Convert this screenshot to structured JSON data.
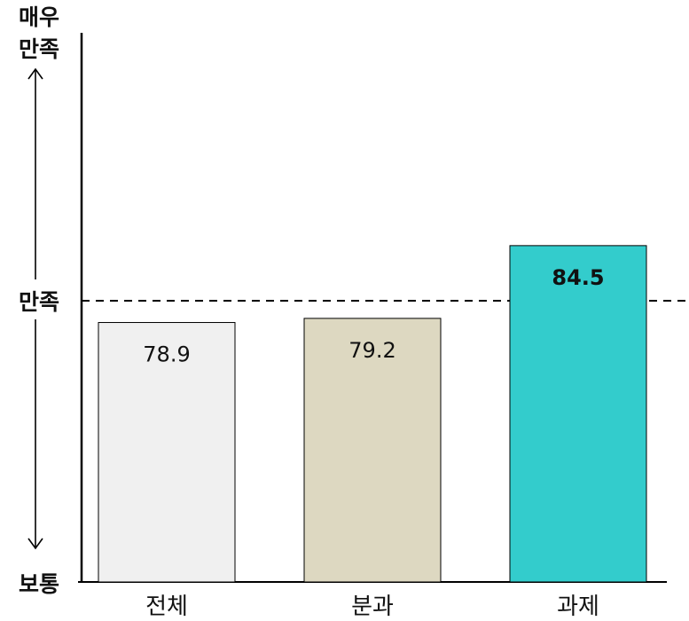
{
  "chart_data": {
    "type": "bar",
    "categories": [
      "전체",
      "분과",
      "과제"
    ],
    "values": [
      78.9,
      79.2,
      84.5
    ],
    "value_labels": [
      "78.9",
      "79.2",
      "84.5"
    ],
    "highlight_index": 2,
    "colors": [
      "#f0f0f0",
      "#ddd8c1",
      "#33cccc"
    ],
    "y_scale_labels": {
      "top": [
        "매우",
        "만족"
      ],
      "middle": "만족",
      "bottom": "보통"
    },
    "reference_line": {
      "label": "만족",
      "style": "dashed"
    },
    "ylim": [
      60,
      100
    ],
    "grid": false,
    "legend": "none"
  }
}
